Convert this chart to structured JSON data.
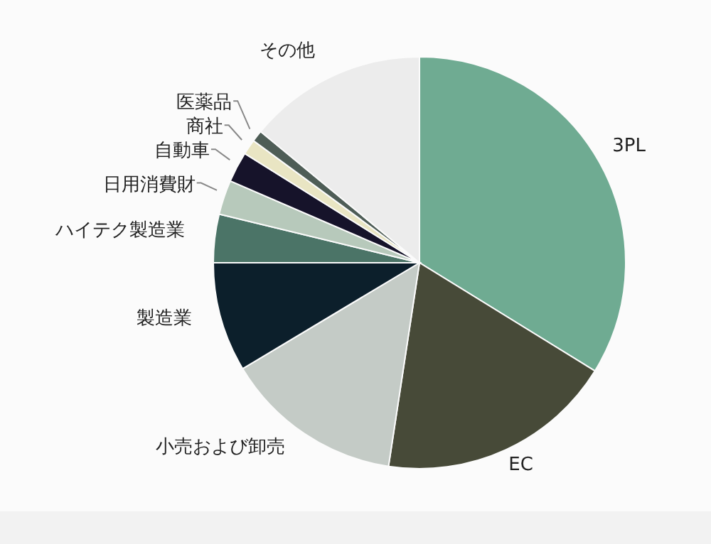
{
  "chart_data": {
    "type": "pie",
    "categories": [
      "3PL",
      "EC",
      "小売および卸売",
      "製造業",
      "ハイテク製造業",
      "日用消費財",
      "自動車",
      "商社",
      "医薬品",
      "その他"
    ],
    "values": [
      33.8,
      18.6,
      14.0,
      8.6,
      3.8,
      2.7,
      2.4,
      1.2,
      0.9,
      14.0
    ],
    "colors": [
      "#6fab92",
      "#474a38",
      "#c4cbc6",
      "#0c1f2b",
      "#4b7467",
      "#b7c9bb",
      "#16132a",
      "#e9e5c3",
      "#4e5d56",
      "#ececec"
    ],
    "legend": false
  }
}
